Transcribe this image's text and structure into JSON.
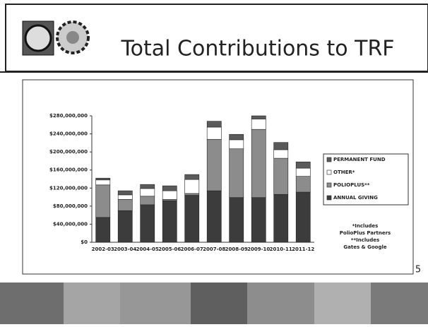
{
  "slide": {
    "title": "Total Contributions to TRF",
    "page_number": "5"
  },
  "chart_data": {
    "type": "bar",
    "stacked": true,
    "grid": false,
    "legend": "right",
    "categories": [
      "2002-03",
      "2003-04",
      "2004-05",
      "2005-06",
      "2006-07",
      "2007-08",
      "2008-09",
      "2009-10",
      "2010-11",
      "2011-12"
    ],
    "series": [
      {
        "name": "ANNUAL GIVING",
        "color": "#3c3c3c",
        "values": [
          55000000,
          70000000,
          83000000,
          92000000,
          104000000,
          114000000,
          99000000,
          99000000,
          106000000,
          111000000
        ]
      },
      {
        "name": "POLIOPLUS**",
        "color": "#8c8c8c",
        "values": [
          72000000,
          25000000,
          19000000,
          3000000,
          4000000,
          114000000,
          108000000,
          151000000,
          80000000,
          35000000
        ]
      },
      {
        "name": "OTHER*",
        "color": "#ffffff",
        "values": [
          11000000,
          10000000,
          17000000,
          19000000,
          31000000,
          27000000,
          20000000,
          23000000,
          19000000,
          18000000
        ]
      },
      {
        "name": "PERMANENT FUND",
        "color": "#5a5a5a",
        "values": [
          4000000,
          9000000,
          9000000,
          11000000,
          11000000,
          13000000,
          12000000,
          7000000,
          16000000,
          14000000
        ]
      }
    ],
    "ylim": [
      0,
      280000000
    ],
    "yticks": [
      {
        "value": 0,
        "label": "$0"
      },
      {
        "value": 40000000,
        "label": "$40,000,000"
      },
      {
        "value": 80000000,
        "label": "$80,000,000"
      },
      {
        "value": 120000000,
        "label": "$120,000,000"
      },
      {
        "value": 160000000,
        "label": "$160,000,000"
      },
      {
        "value": 200000000,
        "label": "$200,000,000"
      },
      {
        "value": 240000000,
        "label": "$240,000,000"
      },
      {
        "value": 280000000,
        "label": "$280,000,000"
      }
    ],
    "annotations": [
      "*Includes",
      "PolioPlus Partners",
      "**Includes",
      "Gates & Google"
    ]
  }
}
